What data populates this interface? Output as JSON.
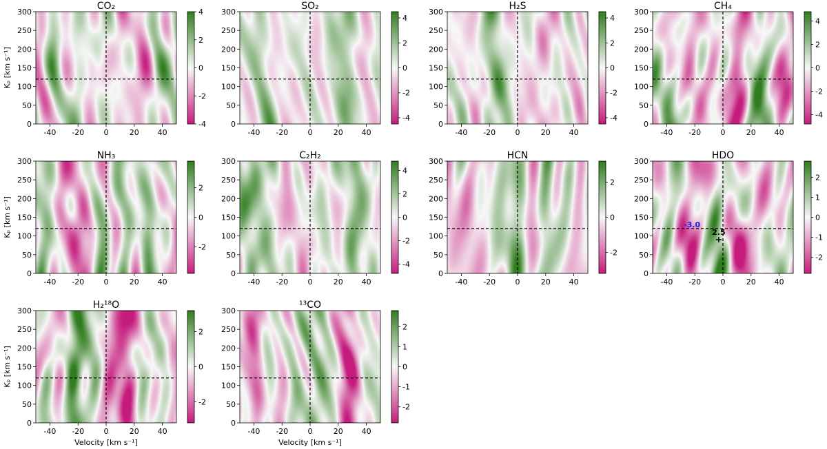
{
  "chart_data": {
    "type": "heatmap",
    "xlabel": "Velocity [km s⁻¹]",
    "ylabel": "Kₚ [km s⁻¹]",
    "xlim": [
      -50,
      50
    ],
    "ylim": [
      0,
      300
    ],
    "xticks": [
      "-40",
      "-20",
      "0",
      "20",
      "40"
    ],
    "xtick_values": [
      -40,
      -20,
      0,
      20,
      40
    ],
    "yticks": [
      "0",
      "50",
      "100",
      "150",
      "200",
      "250",
      "300"
    ],
    "ytick_values": [
      0,
      50,
      100,
      150,
      200,
      250,
      300
    ],
    "reference_lines": {
      "velocity": 0,
      "kp": 120
    },
    "colormap": {
      "negative": "#c51b7d",
      "zero": "#f7f7f7",
      "positive": "#2f7d1e"
    },
    "panels": [
      {
        "title": "CO₂",
        "clim": [
          -4,
          4
        ],
        "cbar_ticks": [
          -4,
          -2,
          0,
          2,
          4
        ],
        "cbar_tick_labels": [
          "-4",
          "-2",
          "0",
          "2",
          "4"
        ],
        "features": [
          {
            "v": 10,
            "width": 6,
            "amp": -0.35
          },
          {
            "v": -18,
            "width": 6,
            "amp": 0.3
          },
          {
            "v": -10,
            "width": 3,
            "amp": -0.3,
            "kp_center": 150,
            "kp_width": 40
          }
        ]
      },
      {
        "title": "SO₂",
        "clim": [
          -4.5,
          4.5
        ],
        "cbar_ticks": [
          -4,
          -2,
          0,
          2,
          4
        ],
        "cbar_tick_labels": [
          "-4",
          "-2",
          "0",
          "2",
          "4"
        ],
        "features": [
          {
            "v": 25,
            "width": 5,
            "amp": 0.6
          },
          {
            "v": -30,
            "width": 6,
            "amp": 0.3
          }
        ]
      },
      {
        "title": "H₂S",
        "clim": [
          -4.5,
          4.5
        ],
        "cbar_ticks": [
          -4,
          -2,
          0,
          2,
          4
        ],
        "cbar_tick_labels": [
          "-4",
          "-2",
          "0",
          "2",
          "4"
        ],
        "features": [
          {
            "v": -15,
            "width": 5,
            "amp": 0.6
          },
          {
            "v": 20,
            "width": 6,
            "amp": -0.3
          }
        ]
      },
      {
        "title": "CH₄",
        "clim": [
          -4.8,
          4.8
        ],
        "cbar_ticks": [
          -4,
          -2,
          0,
          2,
          4
        ],
        "cbar_tick_labels": [
          "-4",
          "-2",
          "0",
          "2",
          "4"
        ],
        "features": [
          {
            "v": 12,
            "width": 5,
            "amp": -0.85
          },
          {
            "v": 28,
            "width": 4,
            "amp": 0.5
          },
          {
            "v": -33,
            "width": 4,
            "amp": -0.4
          },
          {
            "v": 42,
            "width": 4,
            "amp": -0.4
          }
        ]
      },
      {
        "title": "NH₃",
        "clim": [
          -3.8,
          3.8
        ],
        "cbar_ticks": [
          -2,
          0,
          2
        ],
        "cbar_tick_labels": [
          "-2",
          "0",
          "2"
        ],
        "features": [
          {
            "v": -20,
            "width": 7,
            "amp": -0.5
          },
          {
            "v": 8,
            "width": 5,
            "amp": 0.5
          },
          {
            "v": 30,
            "width": 5,
            "amp": 0.3
          }
        ]
      },
      {
        "title": "C₂H₂",
        "clim": [
          -4.8,
          4.8
        ],
        "cbar_ticks": [
          -4,
          -2,
          0,
          2,
          4
        ],
        "cbar_tick_labels": [
          "-4",
          "-2",
          "0",
          "2",
          "4"
        ],
        "features": [
          {
            "v": -25,
            "width": 6,
            "amp": 0.4
          },
          {
            "v": 30,
            "width": 5,
            "amp": 0.3
          }
        ]
      },
      {
        "title": "HCN",
        "clim": [
          -3.2,
          3.2
        ],
        "cbar_ticks": [
          -2,
          0,
          2
        ],
        "cbar_tick_labels": [
          "-2",
          "0",
          "2"
        ],
        "features": [
          {
            "v": 0,
            "width": 5,
            "amp": 0.5
          },
          {
            "v": -35,
            "width": 5,
            "amp": -0.35
          },
          {
            "v": 20,
            "width": 5,
            "amp": 0.35
          }
        ]
      },
      {
        "title": "HDO",
        "clim": [
          -2.8,
          2.8
        ],
        "cbar_ticks": [
          -2,
          -1,
          0,
          1,
          2
        ],
        "cbar_tick_labels": [
          "-2",
          "-1",
          "0",
          "1",
          "2"
        ],
        "features": [
          {
            "v": -20,
            "width": 6,
            "amp": -0.9
          },
          {
            "v": -4,
            "width": 4,
            "amp": 0.8
          },
          {
            "v": 12,
            "width": 6,
            "amp": -0.5
          },
          {
            "v": -35,
            "width": 5,
            "amp": 0.4
          }
        ],
        "markers": [
          {
            "label": "-3.0",
            "v": -22,
            "kp": 120,
            "color": "#2020e0",
            "symbol": "none"
          },
          {
            "label": "2.5",
            "v": -3,
            "kp": 90,
            "color": "#000000",
            "symbol": "+"
          }
        ]
      },
      {
        "title": "H₂¹⁸O",
        "clim": [
          -3.2,
          3.2
        ],
        "cbar_ticks": [
          -2,
          0,
          2
        ],
        "cbar_tick_labels": [
          "-2",
          "0",
          "2"
        ],
        "features": [
          {
            "v": 12,
            "width": 6,
            "amp": -0.8
          },
          {
            "v": -22,
            "width": 5,
            "amp": 0.55
          },
          {
            "v": -45,
            "width": 4,
            "amp": 0.5
          }
        ]
      },
      {
        "title": "¹³CO",
        "clim": [
          -2.8,
          2.8
        ],
        "cbar_ticks": [
          -2,
          -1,
          0,
          1,
          2
        ],
        "cbar_tick_labels": [
          "-2",
          "-1",
          "0",
          "1",
          "2"
        ],
        "features": [
          {
            "v": -38,
            "width": 5,
            "amp": -0.8
          },
          {
            "v": 28,
            "width": 6,
            "amp": -0.7
          },
          {
            "v": -12,
            "width": 5,
            "amp": 0.5
          },
          {
            "v": 10,
            "width": 5,
            "amp": 0.45
          }
        ]
      }
    ]
  }
}
